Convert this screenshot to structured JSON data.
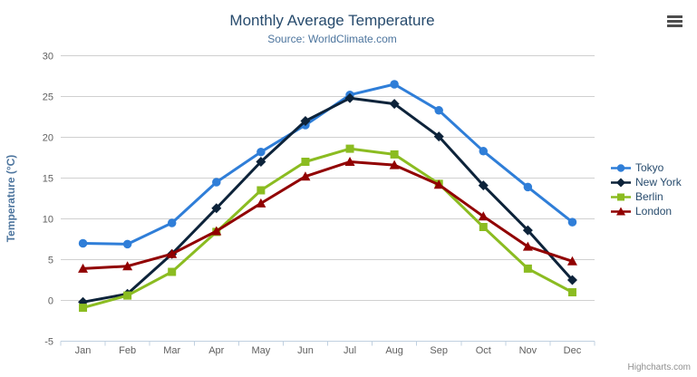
{
  "header": {
    "title": "Monthly Average Temperature",
    "subtitle": "Source: WorldClimate.com"
  },
  "toolbar": {
    "context_menu_icon": "hamburger-icon"
  },
  "credits": {
    "label": "Highcharts.com"
  },
  "colors": {
    "title_text": "#274b6d",
    "subtitle_text": "#4d759e",
    "axis_title_text": "#4d759e",
    "axis_label_text": "#606060",
    "grid_line": "#d0d0d0",
    "x_axis_line": "#c0d0e0",
    "legend_text": "#274b6d",
    "credits_text": "#909090"
  },
  "chart_data": {
    "type": "line",
    "title": "Monthly Average Temperature",
    "subtitle": "Source: WorldClimate.com",
    "xlabel": "",
    "ylabel": "Temperature (°C)",
    "categories": [
      "Jan",
      "Feb",
      "Mar",
      "Apr",
      "May",
      "Jun",
      "Jul",
      "Aug",
      "Sep",
      "Oct",
      "Nov",
      "Dec"
    ],
    "ylim": [
      -5,
      30
    ],
    "ytick_step": 5,
    "grid": true,
    "legend_position": "right",
    "series": [
      {
        "name": "Tokyo",
        "color": "#2f7ed8",
        "marker": "circle",
        "values": [
          7.0,
          6.9,
          9.5,
          14.5,
          18.2,
          21.5,
          25.2,
          26.5,
          23.3,
          18.3,
          13.9,
          9.6
        ]
      },
      {
        "name": "New York",
        "color": "#0d233a",
        "marker": "diamond",
        "values": [
          -0.2,
          0.8,
          5.7,
          11.3,
          17.0,
          22.0,
          24.8,
          24.1,
          20.1,
          14.1,
          8.6,
          2.5
        ]
      },
      {
        "name": "Berlin",
        "color": "#8bbc21",
        "marker": "square",
        "values": [
          -0.9,
          0.6,
          3.5,
          8.4,
          13.5,
          17.0,
          18.6,
          17.9,
          14.3,
          9.0,
          3.9,
          1.0
        ]
      },
      {
        "name": "London",
        "color": "#910000",
        "marker": "triangle",
        "values": [
          3.9,
          4.2,
          5.7,
          8.5,
          11.9,
          15.2,
          17.0,
          16.6,
          14.2,
          10.3,
          6.6,
          4.8
        ]
      }
    ]
  }
}
